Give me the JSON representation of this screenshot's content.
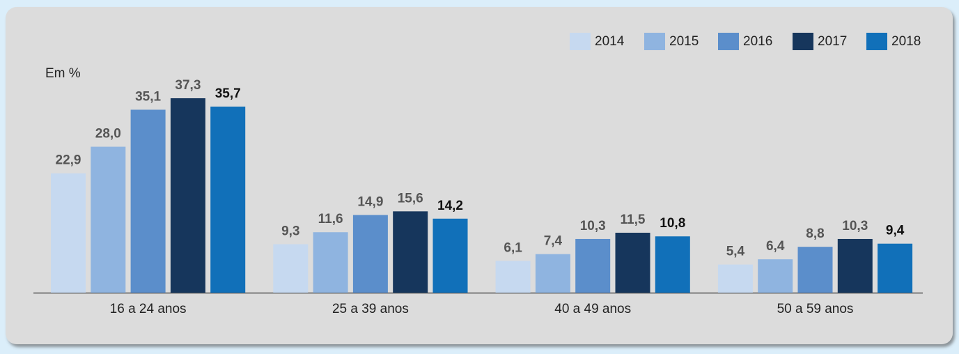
{
  "chart_data": {
    "type": "bar",
    "unit_label": "Em %",
    "categories": [
      "16 a 24 anos",
      "25 a 39 anos",
      "40 a 49 anos",
      "50 a 59 anos"
    ],
    "series": [
      {
        "name": "2014",
        "color": "#c6d9f0",
        "values": [
          22.9,
          9.3,
          6.1,
          5.4
        ],
        "value_labels": [
          "22,9",
          "9,3",
          "6,1",
          "5,4"
        ]
      },
      {
        "name": "2015",
        "color": "#8fb4e0",
        "values": [
          28.0,
          11.6,
          7.4,
          6.4
        ],
        "value_labels": [
          "28,0",
          "11,6",
          "7,4",
          "6,4"
        ]
      },
      {
        "name": "2016",
        "color": "#5b8ecb",
        "values": [
          35.1,
          14.9,
          10.3,
          8.8
        ],
        "value_labels": [
          "35,1",
          "14,9",
          "10,3",
          "8,8"
        ]
      },
      {
        "name": "2017",
        "color": "#16365c",
        "values": [
          37.3,
          15.6,
          11.5,
          10.3
        ],
        "value_labels": [
          "37,3",
          "15,6",
          "11,5",
          "10,3"
        ]
      },
      {
        "name": "2018",
        "color": "#1170b9",
        "values": [
          35.7,
          14.2,
          10.8,
          9.4
        ],
        "value_labels": [
          "35,7",
          "14,2",
          "10,8",
          "9,4"
        ]
      }
    ]
  }
}
